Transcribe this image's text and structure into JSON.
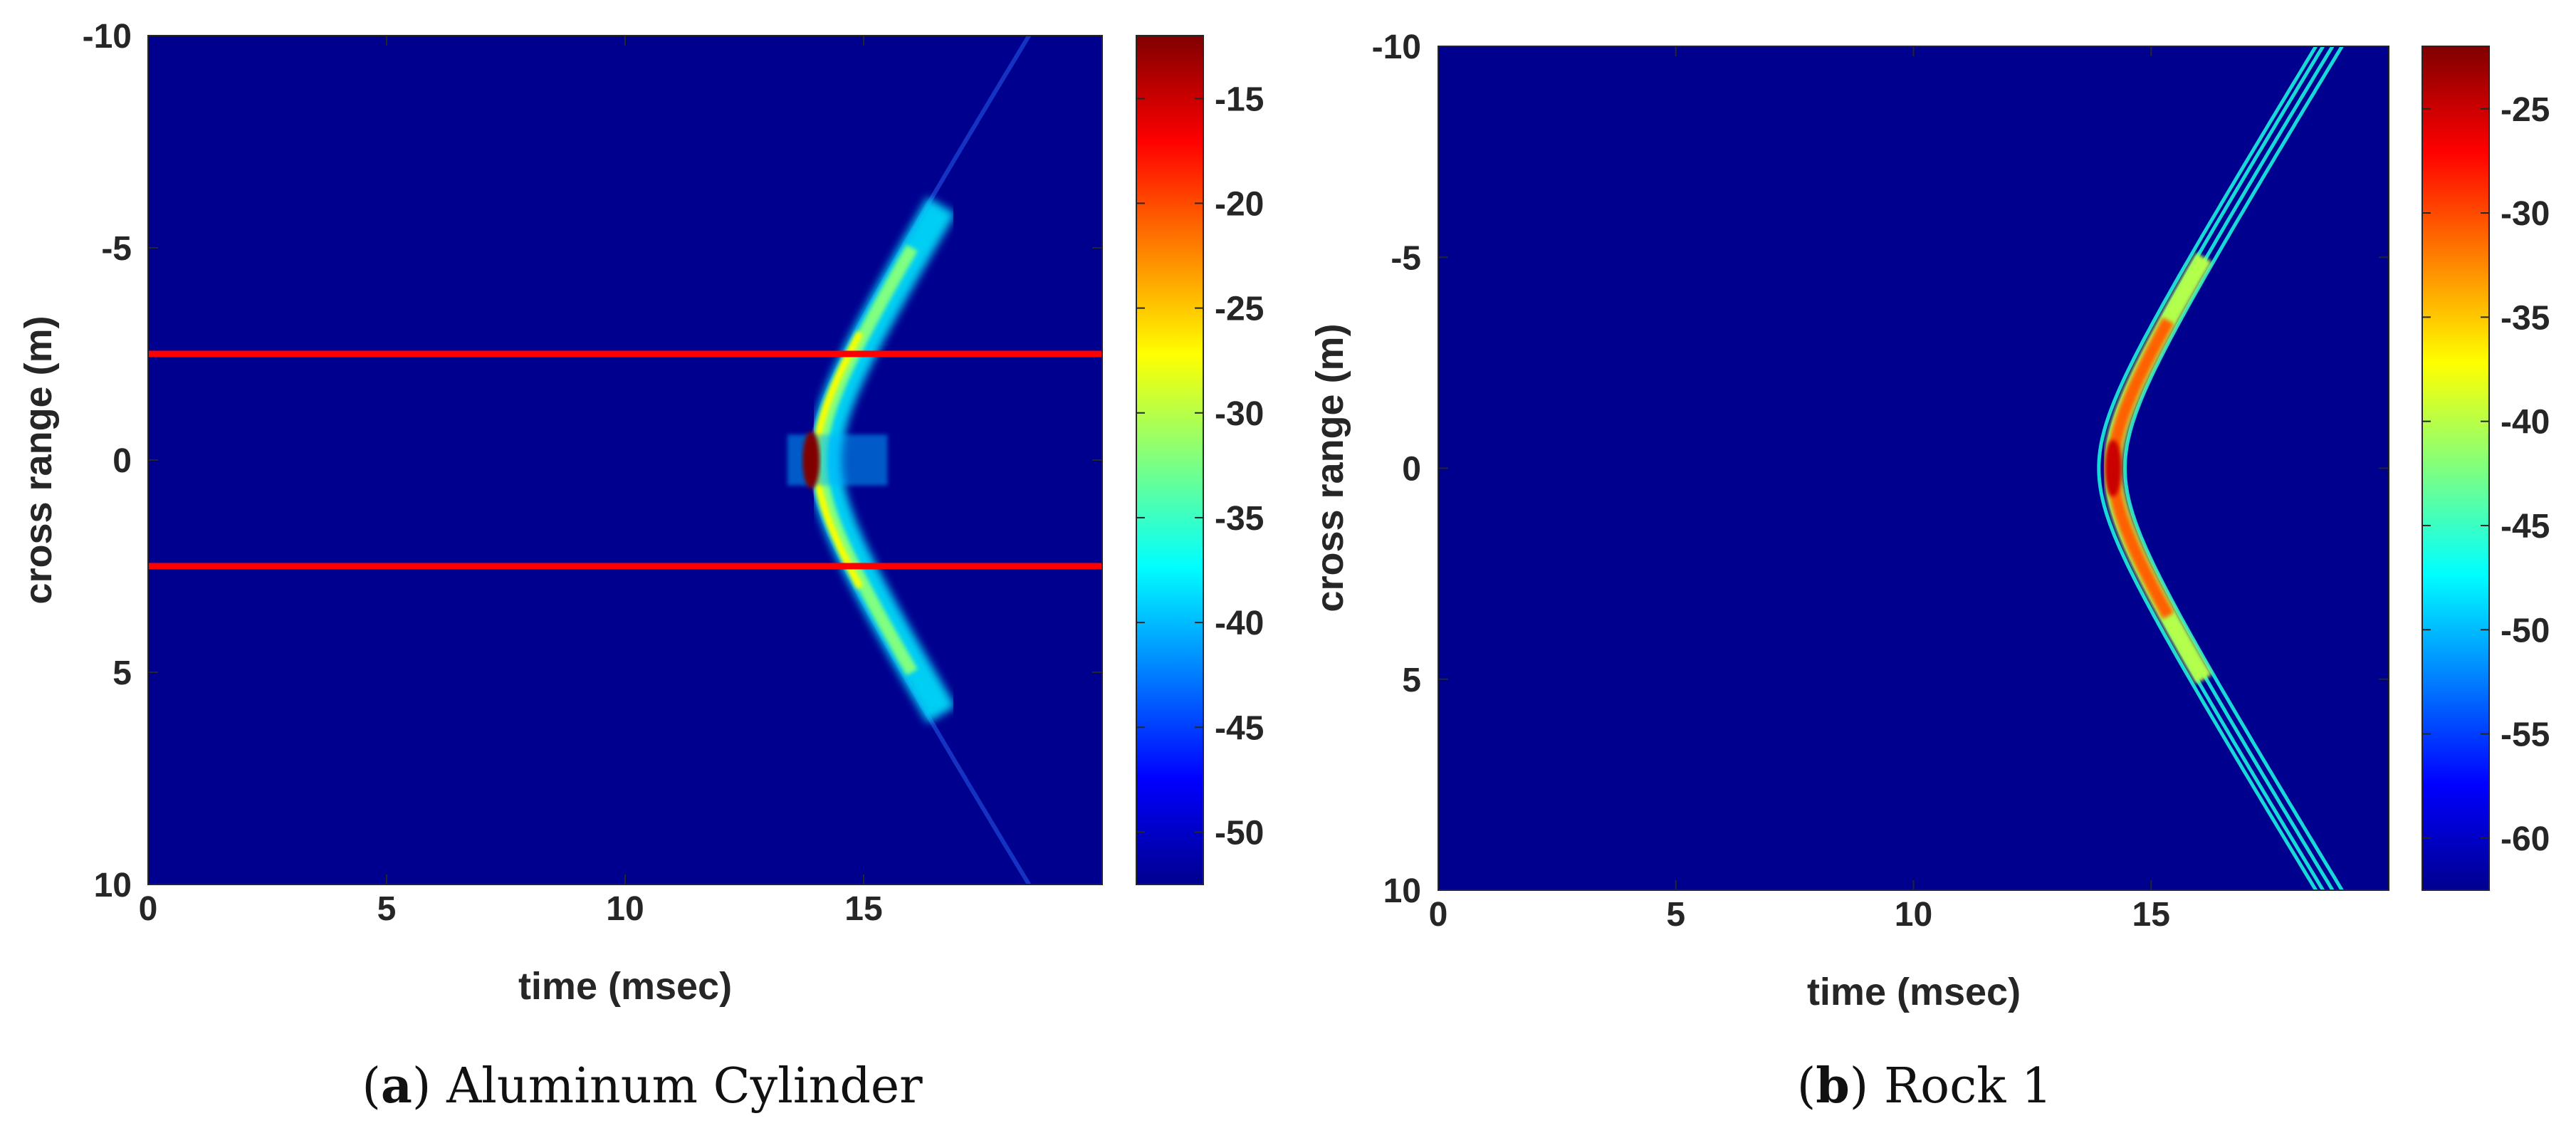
{
  "chart_data": [
    {
      "type": "heatmap",
      "caption_letter": "a",
      "caption_text": "Aluminum Cylinder",
      "xlabel": "time (msec)",
      "ylabel": "cross range (m)",
      "xlim": [
        0,
        20
      ],
      "ylim": [
        -10,
        10
      ],
      "y_reversed": true,
      "x_ticks": [
        0,
        5,
        10,
        15
      ],
      "y_ticks": [
        -10,
        -5,
        0,
        5,
        10
      ],
      "colorbar": {
        "range": [
          -52.5,
          -12
        ],
        "ticks": [
          -15,
          -20,
          -25,
          -30,
          -35,
          -40,
          -45,
          -50
        ],
        "colormap": "jet"
      },
      "reference_lines_y": [
        -2.5,
        2.5
      ],
      "reference_line_color": "#ff0000",
      "hyperbola": {
        "apex_time": 13.7,
        "apex_cross": 0,
        "spread": 0.03,
        "visible_extent_y": [
          -6,
          6
        ],
        "faint_extent_y": [
          -10,
          10
        ]
      },
      "peak": {
        "x": 13.9,
        "y": 0,
        "value": -12
      }
    },
    {
      "type": "heatmap",
      "caption_letter": "b",
      "caption_text": "Rock 1",
      "xlabel": "time (msec)",
      "ylabel": "cross range (m)",
      "xlim": [
        0,
        20
      ],
      "ylim": [
        -10,
        10
      ],
      "y_reversed": true,
      "x_ticks": [
        0,
        5,
        10,
        15
      ],
      "y_ticks": [
        -10,
        -5,
        0,
        5,
        10
      ],
      "colorbar": {
        "range": [
          -62.5,
          -22
        ],
        "ticks": [
          -25,
          -30,
          -35,
          -40,
          -45,
          -50,
          -55,
          -60
        ],
        "colormap": "jet"
      },
      "hyperbola": {
        "apex_time": 13.9,
        "apex_cross": 0,
        "spread": 0.03,
        "visible_extent_y": [
          -10,
          10
        ]
      },
      "peak": {
        "x": 14.2,
        "y": 0,
        "value": -25
      }
    }
  ]
}
